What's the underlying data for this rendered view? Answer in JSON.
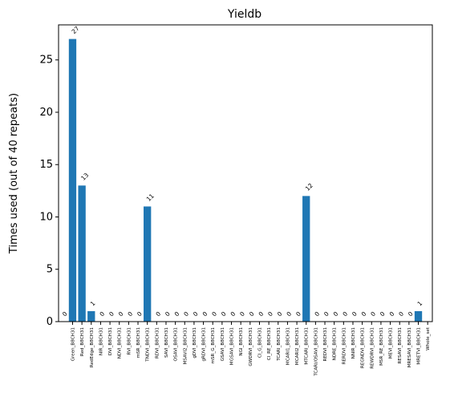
{
  "chart_data": {
    "type": "bar",
    "title": "Yieldb",
    "xlabel": "",
    "ylabel": "Times used (out of 40 repeats)",
    "ylim": [
      0,
      28.35
    ],
    "yticks": [
      0,
      5,
      10,
      15,
      20,
      25
    ],
    "grid": false,
    "bar_color": "#1f77b4",
    "categories": [
      "",
      "Green_B8CH31",
      "Red_B8CH31",
      "RedEdge_B8CH31",
      "NIR_B8CH31",
      "DVI_B8CH31",
      "NDVI_B8CH31",
      "RVI_B8CH31",
      "mSR_B8CH31",
      "TNDVI_B8CH31",
      "RDVI_B8CH31",
      "SAVI_B8CH31",
      "OSAVI_B8CH31",
      "MSAVI2_B8CH31",
      "gDVI_B8CH31",
      "gRDVI_B8CH31",
      "mSR_G_B8CH31",
      "GSAVI_B8CH31",
      "MGSAVI_B8CH31",
      "NGI_B8CH31",
      "GWDRVI_B8CH31",
      "CI_G_B8CH31",
      "CI_RE_B8CH31",
      "TCARI_B8CH31",
      "MCARI1_B8CH31",
      "MCARI2_B8CH31",
      "MTCARI_B8CH31",
      "TCARI/OSAVI_B8CH31",
      "REDVI_B8CH31",
      "NDRE_B8CH31",
      "RERDVI_B8CH31",
      "NNIR_B8CH31",
      "REGNDVI_B8CH31",
      "REWDRVI_B8CH31",
      "MSR_RE_B8CH31",
      "MEVI_B8CH31",
      "RESAVI_B8CH31",
      "MRESAVI_B8CH31",
      "MRETVI_B8CH31",
      "Whole_set"
    ],
    "values": [
      0,
      27,
      13,
      1,
      0,
      0,
      0,
      0,
      0,
      11,
      0,
      0,
      0,
      0,
      0,
      0,
      0,
      0,
      0,
      0,
      0,
      0,
      0,
      0,
      0,
      0,
      12,
      0,
      0,
      0,
      0,
      0,
      0,
      0,
      0,
      0,
      0,
      0,
      1,
      null
    ],
    "data_labels": [
      "0",
      "27",
      "13",
      "1",
      "0",
      "0",
      "0",
      "0",
      "0",
      "11",
      "0",
      "0",
      "0",
      "0",
      "0",
      "0",
      "0",
      "0",
      "0",
      "0",
      "0",
      "0",
      "0",
      "0",
      "0",
      "0",
      "12",
      "0",
      "0",
      "0",
      "0",
      "0",
      "0",
      "0",
      "0",
      "0",
      "0",
      "0",
      "1",
      ""
    ]
  }
}
